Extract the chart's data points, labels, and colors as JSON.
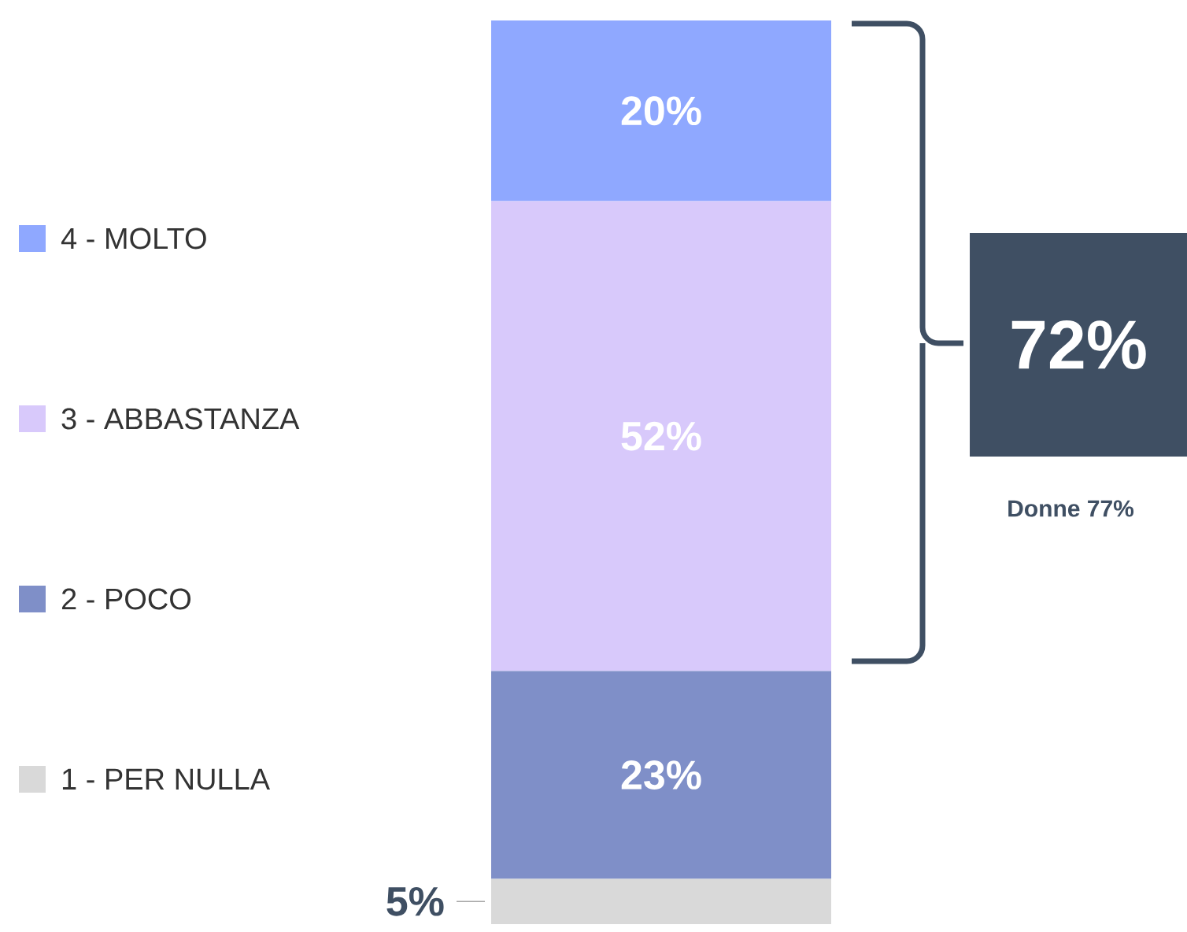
{
  "chart_data": {
    "type": "bar",
    "stacked": true,
    "categories": [
      null
    ],
    "legend": "left",
    "series": [
      {
        "name": "1 - PER NULLA",
        "color": "#d9d9d9",
        "values": [
          5
        ],
        "value_labels": [
          "5%"
        ]
      },
      {
        "name": "2 - POCO",
        "color": "#7f8fc8",
        "values": [
          23
        ],
        "value_labels": [
          "23%"
        ]
      },
      {
        "name": "3 - ABBASTANZA",
        "color": "#d8c9fb",
        "values": [
          52
        ],
        "value_labels": [
          "52%"
        ]
      },
      {
        "name": "4 - MOLTO",
        "color": "#8fa8ff",
        "values": [
          20
        ],
        "value_labels": [
          "20%"
        ]
      }
    ],
    "annotations": [
      "72%",
      "Donne 77%"
    ]
  }
}
